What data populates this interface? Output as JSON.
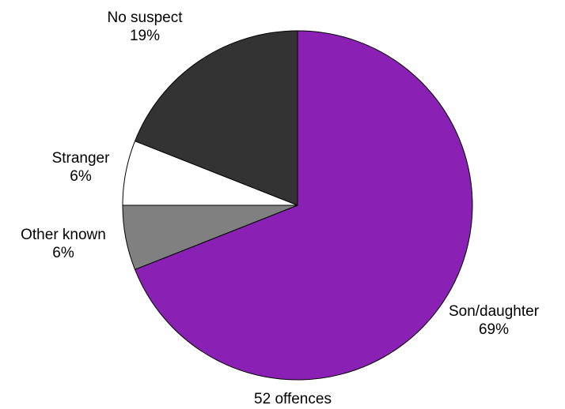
{
  "chart_data": {
    "type": "pie",
    "caption": "52 offences",
    "start_angle_deg": 0,
    "direction": "clockwise",
    "slices": [
      {
        "label": "Son/daughter",
        "value": 69,
        "value_label": "69%",
        "color": "#8B21B4"
      },
      {
        "label": "Other known",
        "value": 6,
        "value_label": "6%",
        "color": "#808080"
      },
      {
        "label": "Stranger",
        "value": 6,
        "value_label": "6%",
        "color": "#FFFFFF"
      },
      {
        "label": "No suspect",
        "value": 19,
        "value_label": "19%",
        "color": "#333333"
      }
    ]
  }
}
